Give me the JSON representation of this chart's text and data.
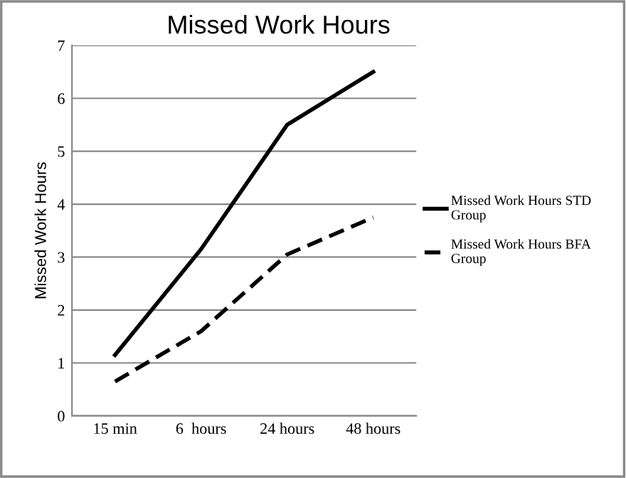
{
  "chart_data": {
    "type": "line",
    "title": "Missed Work Hours",
    "ylabel": "Missed Work Hours",
    "categories": [
      "15 min",
      "6  hours",
      "24 hours",
      "48 hours"
    ],
    "series": [
      {
        "name": "Missed Work Hours STD Group",
        "color": "#000000",
        "line_style": "solid",
        "values": [
          1.15,
          3.15,
          5.5,
          6.5
        ]
      },
      {
        "name": "Missed Work Hours BFA Group",
        "color": "#000000",
        "line_style": "dashed",
        "values": [
          0.65,
          1.6,
          3.05,
          3.75
        ]
      }
    ],
    "ylim": [
      0,
      7
    ],
    "yticks": [
      0,
      1,
      2,
      3,
      4,
      5,
      6,
      7
    ],
    "grid": "y",
    "legend": "right",
    "marker": "none"
  }
}
